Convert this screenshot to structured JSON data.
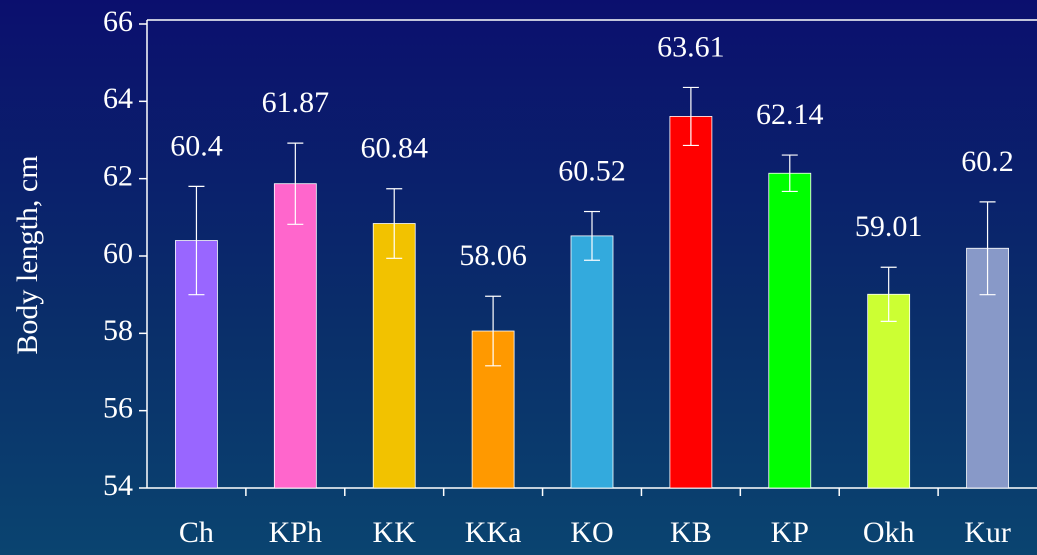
{
  "chart_data": {
    "type": "bar",
    "y_label": "Body length, cm",
    "categories": [
      "Ch",
      "KPh",
      "KK",
      "KKa",
      "KO",
      "KB",
      "KP",
      "Okh",
      "Kur"
    ],
    "values": [
      60.4,
      61.87,
      60.84,
      58.06,
      60.52,
      63.61,
      62.14,
      59.01,
      60.2
    ],
    "errors": [
      1.4,
      1.05,
      0.9,
      0.9,
      0.63,
      0.75,
      0.47,
      0.7,
      1.2
    ],
    "colors": [
      "#9966ff",
      "#ff66cc",
      "#f2c200",
      "#ff9900",
      "#33aadd",
      "#ff0000",
      "#00ff00",
      "#ccff33",
      "#8899c8"
    ],
    "ylim": [
      54,
      66
    ],
    "yticks": [
      54,
      56,
      58,
      60,
      62,
      64,
      66
    ],
    "grid": false
  }
}
